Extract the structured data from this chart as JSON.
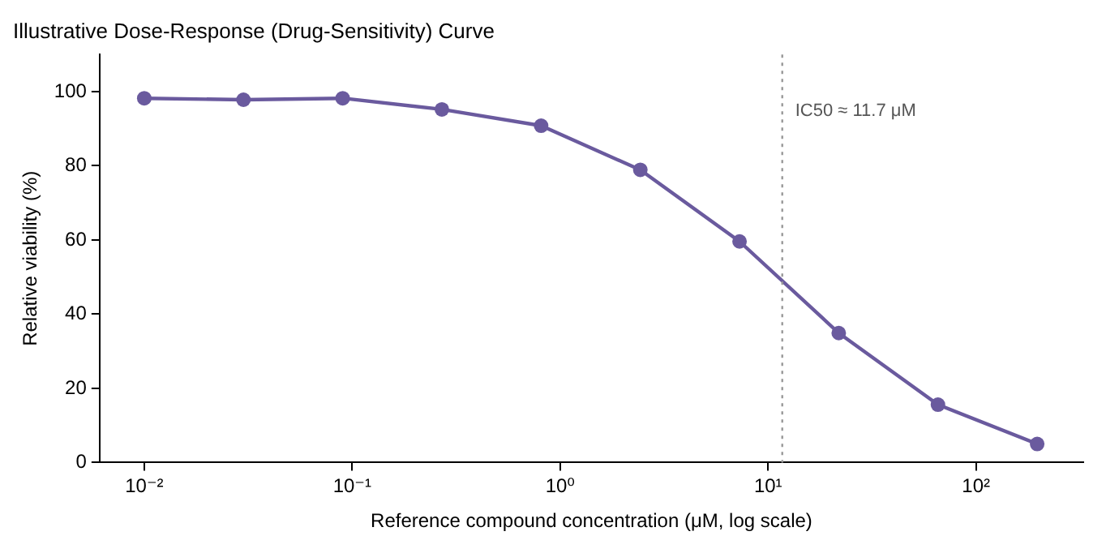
{
  "chart_data": {
    "type": "line",
    "title": "Illustrative Dose-Response (Drug-Sensitivity) Curve",
    "xlabel": "Reference compound concentration (μM, log scale)",
    "ylabel": "Relative viability (%)",
    "x": [
      0.01,
      0.03,
      0.09,
      0.27,
      0.81,
      2.43,
      7.29,
      21.87,
      65.61,
      196.83
    ],
    "series": [
      {
        "color": "#6a5a9e",
        "values": [
          98.2,
          97.8,
          98.2,
          95.2,
          90.8,
          78.9,
          59.6,
          34.9,
          15.6,
          5.0
        ]
      }
    ],
    "log": "x",
    "xlim": [
      0.0061,
      328
    ],
    "xticks": [
      {
        "value": 0.01,
        "label": "10⁻²"
      },
      {
        "value": 0.1,
        "label": "10⁻¹"
      },
      {
        "value": 1,
        "label": "10⁰"
      },
      {
        "value": 10,
        "label": "10¹"
      },
      {
        "value": 100,
        "label": "10²"
      }
    ],
    "ylim": [
      0,
      110
    ],
    "yticks": [
      0,
      20,
      40,
      60,
      80,
      100
    ],
    "ref_lines": [
      {
        "axis": "x",
        "value": 11.7,
        "label": "IC50 ≈ 11.7 μM",
        "color": "#999999",
        "line_style": "dotted"
      }
    ],
    "grid": false,
    "legend": false,
    "marker": "circle",
    "line_style": "solid"
  }
}
